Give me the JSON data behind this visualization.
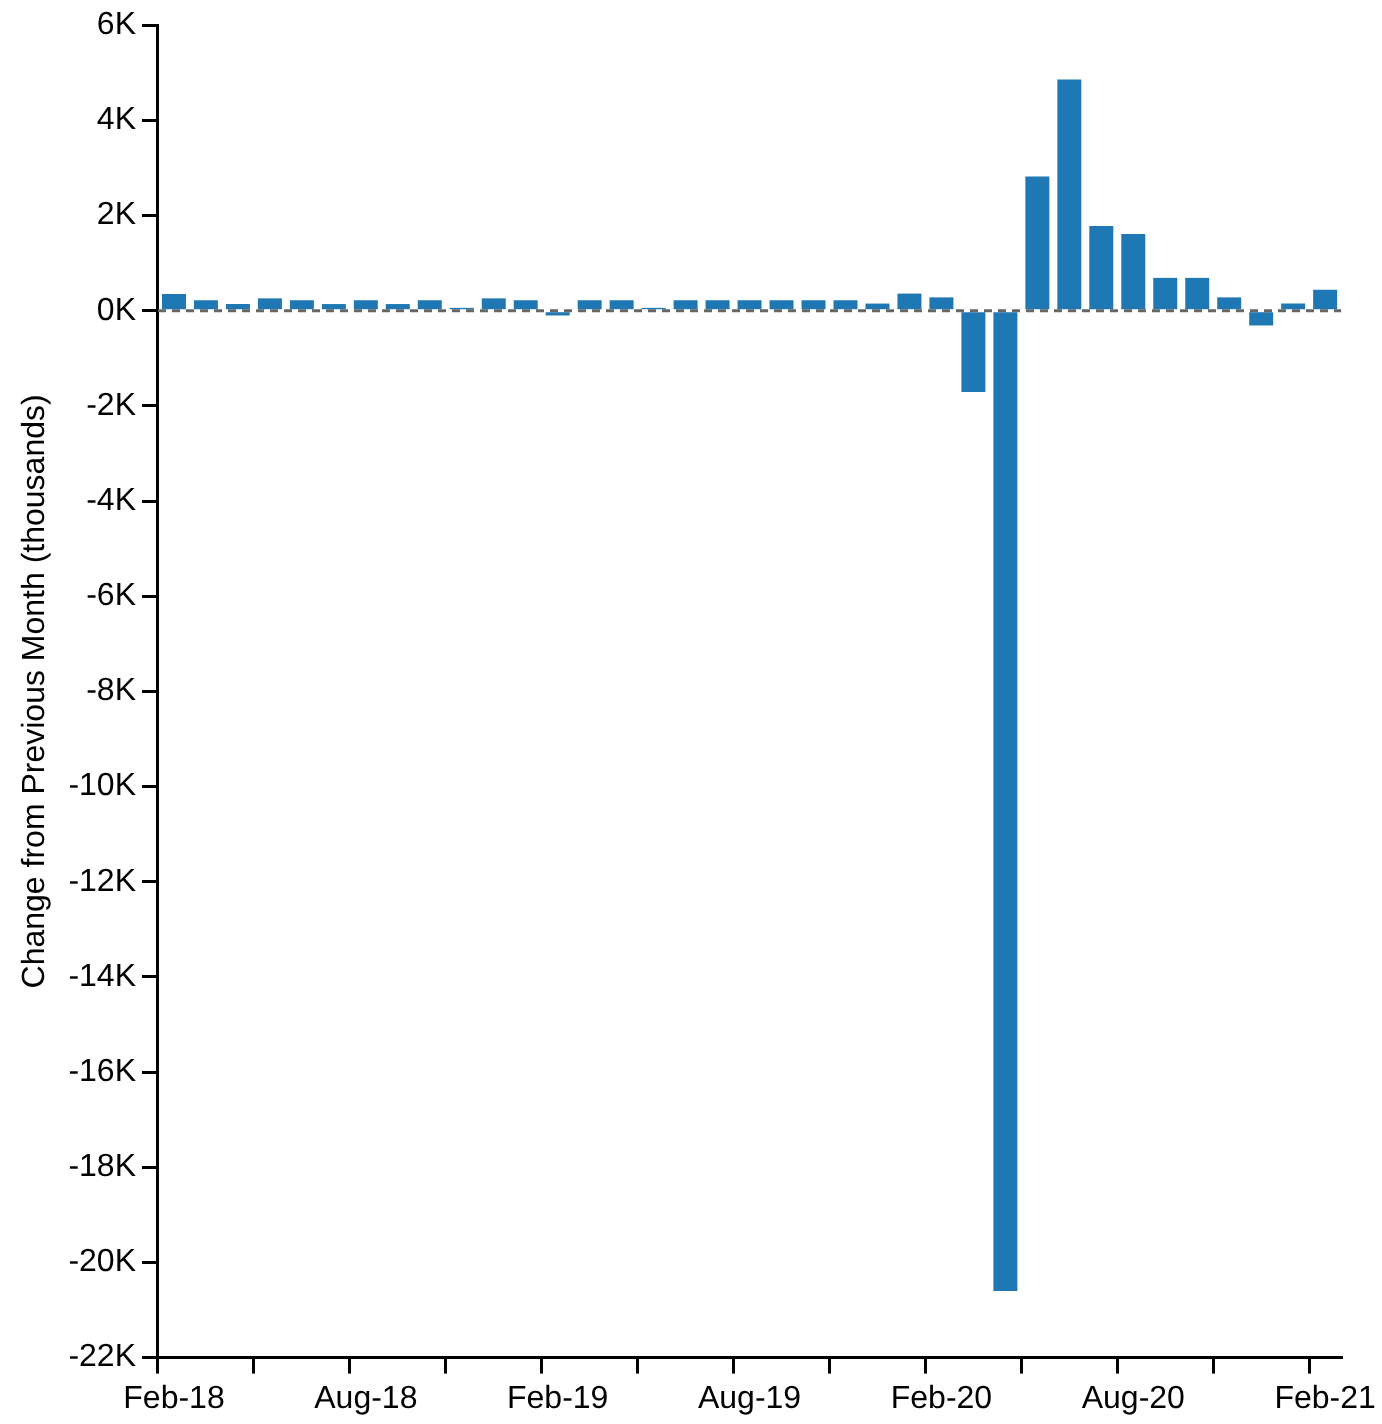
{
  "chart_data": {
    "type": "bar",
    "ylabel": "Change from Previous Month (thousands)",
    "categories": [
      "Feb-18",
      null,
      null,
      null,
      null,
      null,
      "Aug-18",
      null,
      null,
      null,
      null,
      null,
      "Feb-19",
      null,
      null,
      null,
      null,
      null,
      "Aug-19",
      null,
      null,
      null,
      null,
      null,
      "Feb-20",
      null,
      null,
      null,
      null,
      null,
      "Aug-20",
      null,
      null,
      null,
      null,
      null,
      "Feb-21"
    ],
    "values": [
      350,
      220,
      140,
      260,
      220,
      140,
      220,
      140,
      220,
      60,
      260,
      220,
      -100,
      220,
      220,
      60,
      220,
      220,
      220,
      220,
      220,
      220,
      150,
      360,
      280,
      -1710,
      -20600,
      2820,
      4860,
      1780,
      1610,
      690,
      690,
      280,
      -310,
      150,
      440
    ],
    "color": "#1f77b4",
    "ylim": [
      -22000,
      6000
    ],
    "yticks": [
      {
        "value": 6000,
        "label": "6K"
      },
      {
        "value": 4000,
        "label": "4K"
      },
      {
        "value": 2000,
        "label": "2K"
      },
      {
        "value": 0,
        "label": "0K"
      },
      {
        "value": -2000,
        "label": "-2K"
      },
      {
        "value": -4000,
        "label": "-4K"
      },
      {
        "value": -6000,
        "label": "-6K"
      },
      {
        "value": -8000,
        "label": "-8K"
      },
      {
        "value": -10000,
        "label": "-10K"
      },
      {
        "value": -12000,
        "label": "-12K"
      },
      {
        "value": -14000,
        "label": "-14K"
      },
      {
        "value": -16000,
        "label": "-16K"
      },
      {
        "value": -18000,
        "label": "-18K"
      },
      {
        "value": -20000,
        "label": "-20K"
      },
      {
        "value": -22000,
        "label": "-22K"
      }
    ],
    "ref_lines": [
      {
        "axis": "y",
        "value": 0,
        "label": null,
        "color": "#666666",
        "line_style": "dashed"
      }
    ],
    "grid": false,
    "legend": false
  }
}
